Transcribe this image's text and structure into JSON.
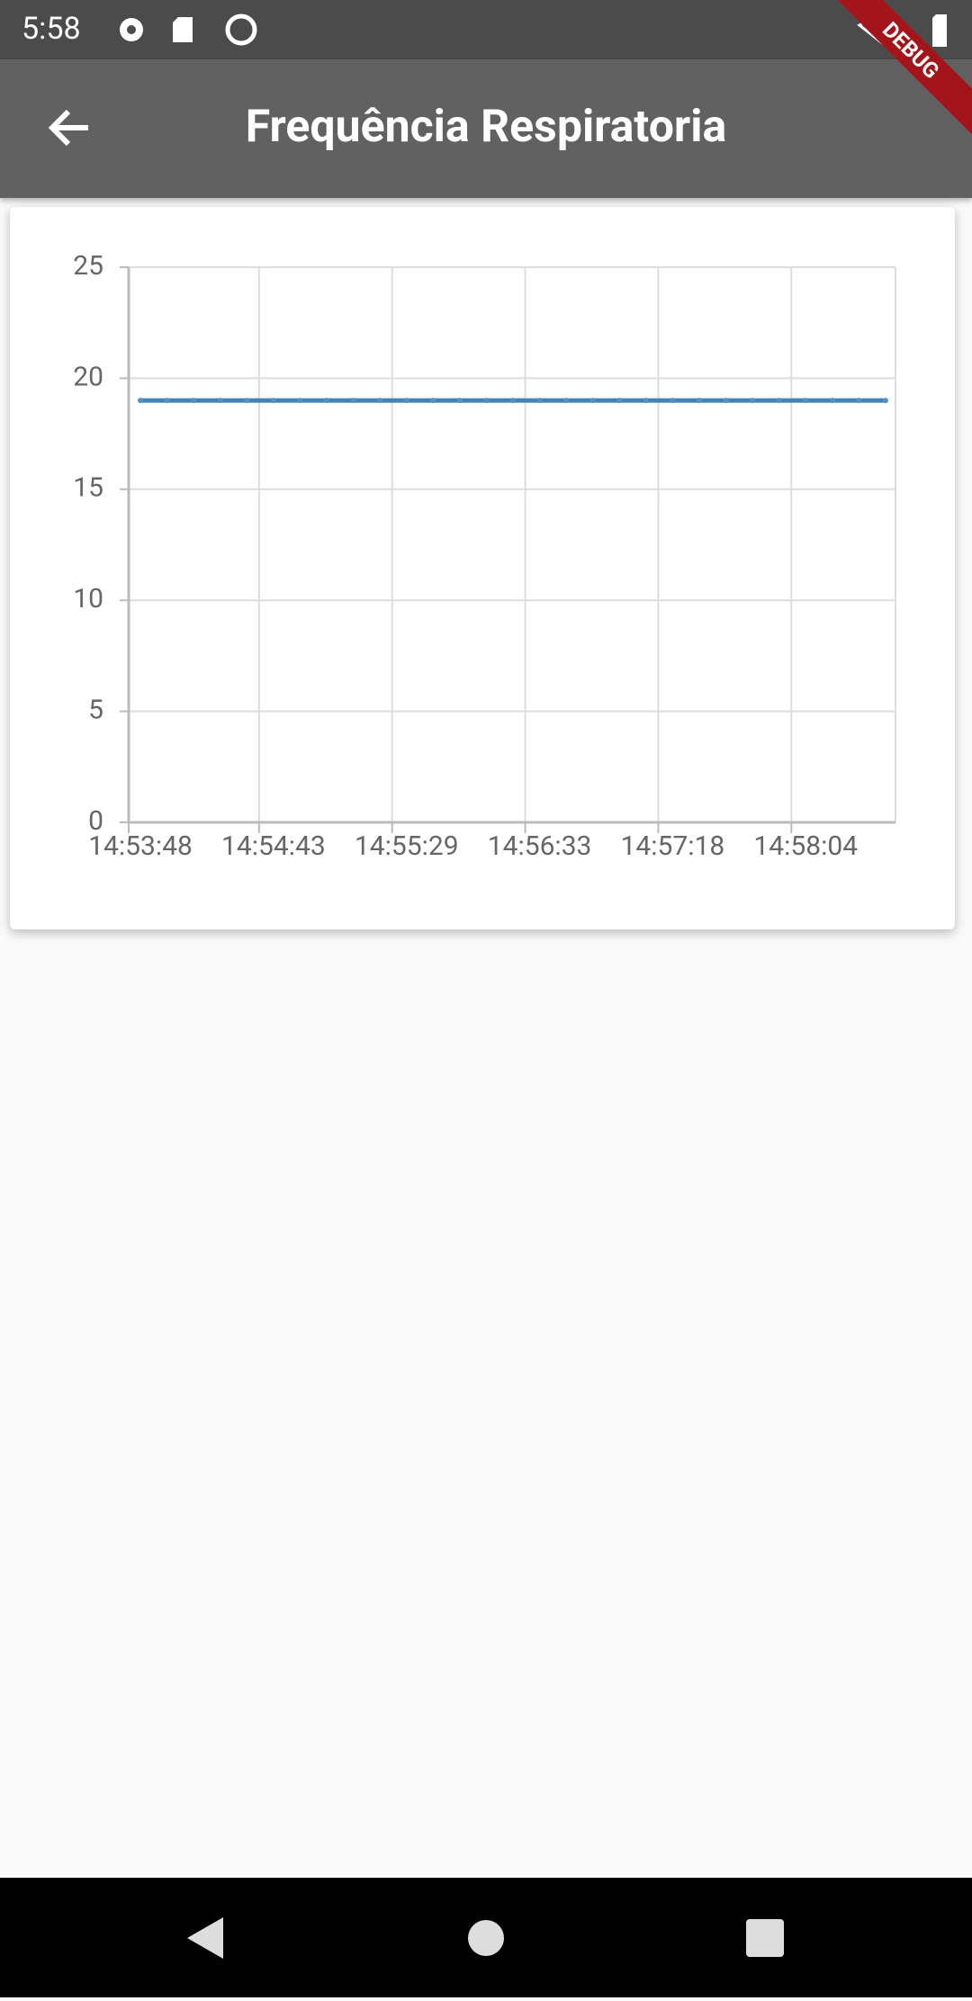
{
  "status_bar": {
    "time": "5:58"
  },
  "app_bar": {
    "title": "Frequência Respiratoria"
  },
  "debug_banner": "DEBUG",
  "chart_data": {
    "type": "line",
    "categories": [
      "14:53:48",
      null,
      null,
      null,
      null,
      "14:54:43",
      null,
      null,
      null,
      null,
      "14:55:29",
      null,
      null,
      null,
      null,
      "14:56:33",
      null,
      null,
      null,
      null,
      "14:57:18",
      null,
      null,
      null,
      null,
      "14:58:04",
      null,
      null,
      null
    ],
    "series": [
      {
        "color": "#4682b4",
        "values": [
          19,
          19,
          19,
          19,
          19,
          19,
          19,
          19,
          19,
          19,
          19,
          19,
          19,
          19,
          19,
          19,
          19,
          19,
          19,
          19,
          19,
          19,
          19,
          19,
          19,
          19,
          19,
          19,
          19
        ]
      }
    ],
    "ylim": [
      0,
      25
    ],
    "yticks": [
      0,
      5,
      10,
      15,
      20,
      25
    ],
    "grid": true
  }
}
